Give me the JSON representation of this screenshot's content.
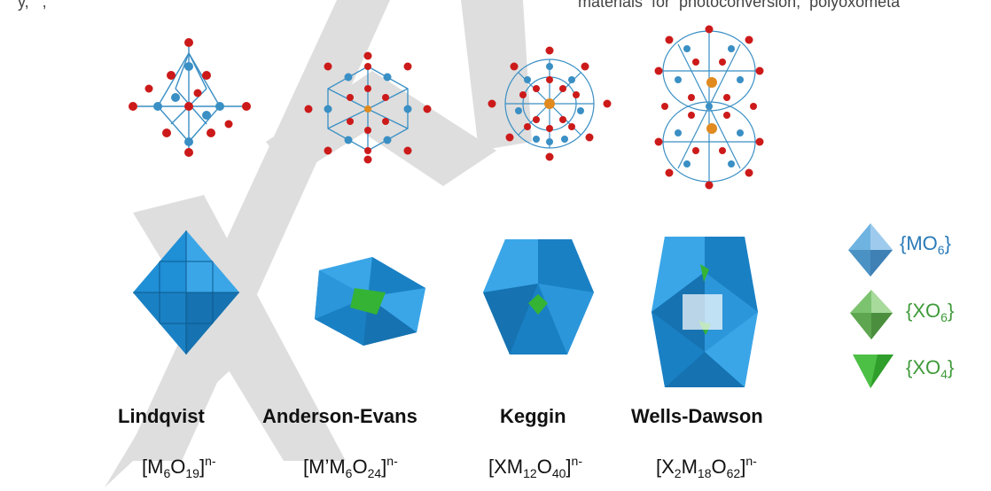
{
  "header_text": "materials  for  photoconversion,  polyoxometa",
  "header_text_left": "y,   ,",
  "structures": [
    {
      "name": "Lindqvist",
      "formula_parts": [
        "[M",
        "6",
        "O",
        "19",
        "]",
        "n-"
      ]
    },
    {
      "name": "Anderson-Evans",
      "formula_parts": [
        "[M’M",
        "6",
        "O",
        "24",
        "]",
        "n-"
      ]
    },
    {
      "name": "Keggin",
      "formula_parts": [
        "[XM",
        "12",
        "O",
        "40",
        "]",
        "n-"
      ]
    },
    {
      "name": "Wells-Dawson",
      "formula_parts": [
        "[X",
        "2",
        "M",
        "18",
        "O",
        "62",
        "]",
        "n-"
      ]
    }
  ],
  "legend": [
    {
      "prefix": "{MO",
      "sub": "6",
      "suffix": "}",
      "color": "#2a7ab8"
    },
    {
      "prefix": "{XO",
      "sub": "6",
      "suffix": "}",
      "color": "#3f9a3a"
    },
    {
      "prefix": "{XO",
      "sub": "4",
      "suffix": "}",
      "color": "#3f9a3a"
    }
  ],
  "colors": {
    "oxygen": "#cc1a1a",
    "metal": "#3a8fc4",
    "heteroatom": "#e08a20",
    "polyhedron_blue": "#1f8fd6",
    "polyhedron_green": "#35b335",
    "watermark": "#d9d9d9"
  }
}
